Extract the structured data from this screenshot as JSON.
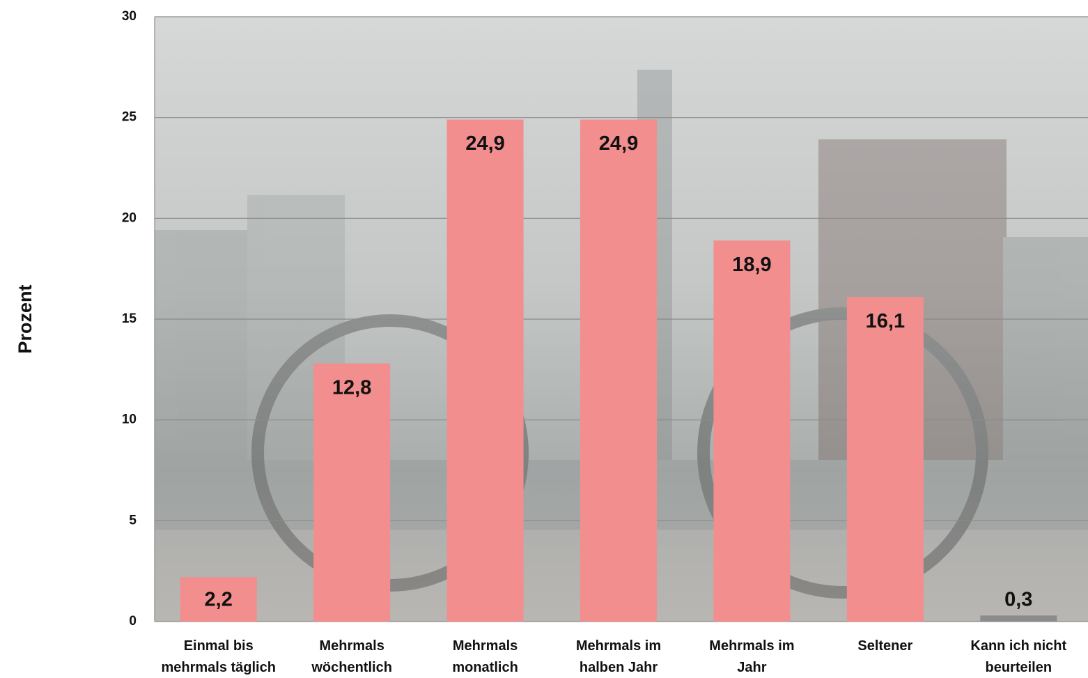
{
  "chart_data": {
    "type": "bar",
    "y_label": "Prozent",
    "categories": [
      [
        "Einmal bis",
        "mehrmals täglich"
      ],
      [
        "Mehrmals",
        "wöchentlich"
      ],
      [
        "Mehrmals",
        "monatlich"
      ],
      [
        "Mehrmals im",
        "halben Jahr"
      ],
      [
        "Mehrmals im",
        "Jahr"
      ],
      [
        "Seltener"
      ],
      [
        "Kann ich nicht",
        "beurteilen"
      ]
    ],
    "values": [
      2.2,
      12.8,
      24.9,
      24.9,
      18.9,
      16.1,
      0.3
    ],
    "value_labels": [
      "2,2",
      "12,8",
      "24,9",
      "24,9",
      "18,9",
      "16,1",
      "0,3"
    ],
    "colors": [
      "#f28e8e",
      "#f28e8e",
      "#f28e8e",
      "#f28e8e",
      "#f28e8e",
      "#f28e8e",
      "#8c8c8c"
    ],
    "ylim": [
      0,
      30
    ],
    "yticks": [
      0,
      5,
      10,
      15,
      20,
      25,
      30
    ],
    "grid": true
  }
}
